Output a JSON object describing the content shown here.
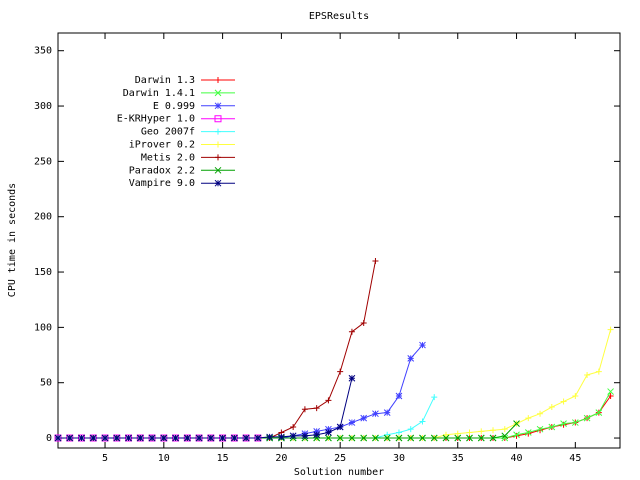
{
  "chart_data": {
    "type": "line",
    "title": "EPSResults",
    "x_label": "Solution number",
    "y_label": "CPU time in seconds",
    "x": [
      1,
      2,
      3,
      4,
      5,
      6,
      7,
      8,
      9,
      10,
      11,
      12,
      13,
      14,
      15,
      16,
      17,
      18,
      19,
      20,
      21,
      22,
      23,
      24,
      25,
      26,
      27,
      28,
      29,
      30,
      31,
      32,
      33,
      34,
      35,
      36,
      37,
      38,
      39,
      40,
      41,
      42,
      43,
      44,
      45,
      46,
      47,
      48
    ],
    "xlim": [
      1,
      48.8
    ],
    "xticks": [
      5,
      10,
      15,
      20,
      25,
      30,
      35,
      40,
      45
    ],
    "ylim": [
      -9,
      366
    ],
    "yticks": [
      0,
      50,
      100,
      150,
      200,
      250,
      300,
      350
    ],
    "grid": false,
    "legend": "upper left",
    "series": [
      {
        "name": "Darwin 1.3",
        "color": "#ff0000",
        "marker": "plus",
        "values": [
          0,
          0,
          0,
          0,
          0,
          0,
          0,
          0,
          0,
          0,
          0,
          0,
          0,
          0,
          0,
          0,
          0,
          0,
          0,
          0,
          0,
          0,
          0,
          0,
          0,
          0,
          0,
          0,
          0,
          0,
          0,
          0,
          0,
          0,
          0,
          0,
          0,
          0,
          0,
          2,
          4,
          7,
          10,
          12,
          14,
          18,
          23,
          38
        ]
      },
      {
        "name": "Darwin 1.4.1",
        "color": "#40ff40",
        "marker": "cross",
        "values": [
          0,
          0,
          0,
          0,
          0,
          0,
          0,
          0,
          0,
          0,
          0,
          0,
          0,
          0,
          0,
          0,
          0,
          0,
          0,
          0,
          0,
          0,
          0,
          0,
          0,
          0,
          0,
          0,
          0,
          0,
          0,
          0,
          0,
          0,
          0,
          0,
          0,
          0,
          0,
          3,
          5,
          8,
          10,
          13,
          14,
          18,
          23,
          42
        ]
      },
      {
        "name": "E 0.999",
        "color": "#4040ff",
        "marker": "star",
        "values": [
          0,
          0,
          0,
          0,
          0,
          0,
          0,
          0,
          0,
          0,
          0,
          0,
          0,
          0,
          0,
          0,
          0,
          0,
          0,
          0,
          2,
          4,
          6,
          8,
          10,
          14,
          18,
          22,
          23,
          38,
          72,
          84,
          null,
          null,
          null,
          null,
          null,
          null,
          null,
          null,
          null,
          null,
          null,
          null,
          null,
          null,
          null,
          null
        ]
      },
      {
        "name": "E-KRHyper 1.0",
        "color": "#ff00ff",
        "marker": "square",
        "values": [
          0,
          0,
          0,
          0,
          0,
          0,
          0,
          0,
          0,
          0,
          0,
          0,
          0,
          0,
          0,
          0,
          0,
          0,
          null,
          null,
          null,
          null,
          null,
          null,
          null,
          null,
          null,
          null,
          null,
          null,
          null,
          null,
          null,
          null,
          null,
          null,
          null,
          null,
          null,
          null,
          null,
          null,
          null,
          null,
          null,
          null,
          null,
          null
        ]
      },
      {
        "name": "Geo 2007f",
        "color": "#40ffff",
        "marker": "plus",
        "values": [
          0,
          0,
          0,
          0,
          0,
          0,
          0,
          0,
          0,
          0,
          0,
          0,
          0,
          0,
          0,
          0,
          0,
          0,
          0,
          0,
          0,
          0,
          0,
          0,
          0,
          0,
          0,
          0,
          3,
          5,
          8,
          15,
          37,
          null,
          null,
          null,
          null,
          null,
          null,
          null,
          null,
          null,
          null,
          null,
          null,
          null,
          null,
          null
        ]
      },
      {
        "name": "iProver 0.2",
        "color": "#ffff40",
        "marker": "plus",
        "values": [
          0,
          0,
          0,
          0,
          0,
          0,
          0,
          0,
          0,
          0,
          0,
          0,
          0,
          0,
          0,
          0,
          0,
          0,
          0,
          0,
          0,
          0,
          0,
          0,
          0,
          0,
          0,
          0,
          0,
          0,
          0,
          0,
          0,
          3,
          4,
          5,
          6,
          7,
          8,
          13,
          18,
          22,
          28,
          33,
          38,
          57,
          60,
          98
        ]
      },
      {
        "name": "Metis 2.0",
        "color": "#a00000",
        "marker": "plus",
        "values": [
          0,
          0,
          0,
          0,
          0,
          0,
          0,
          0,
          0,
          0,
          0,
          0,
          0,
          0,
          0,
          0,
          0,
          0,
          0,
          5,
          10,
          26,
          27,
          34,
          60,
          96,
          104,
          160,
          null,
          null,
          null,
          null,
          null,
          null,
          null,
          null,
          null,
          null,
          null,
          null,
          null,
          null,
          null,
          null,
          null,
          null,
          null,
          null
        ]
      },
      {
        "name": "Paradox 2.2",
        "color": "#00a000",
        "marker": "cross",
        "values": [
          0,
          0,
          0,
          0,
          0,
          0,
          0,
          0,
          0,
          0,
          0,
          0,
          0,
          0,
          0,
          0,
          0,
          0,
          0,
          0,
          0,
          0,
          0,
          0,
          0,
          0,
          0,
          0,
          0,
          0,
          0,
          0,
          0,
          0,
          0,
          0,
          0,
          0,
          2,
          13,
          null,
          null,
          null,
          null,
          null,
          null,
          null,
          null
        ]
      },
      {
        "name": "Vampire 9.0",
        "color": "#000080",
        "marker": "star",
        "values": [
          0,
          0,
          0,
          0,
          0,
          0,
          0,
          0,
          0,
          0,
          0,
          0,
          0,
          0,
          0,
          0,
          0,
          0,
          1,
          1,
          2,
          2,
          3,
          5,
          10,
          54,
          null,
          null,
          null,
          null,
          null,
          null,
          null,
          null,
          null,
          null,
          null,
          null,
          null,
          null,
          null,
          null,
          null,
          null,
          null,
          null,
          null,
          null
        ]
      }
    ]
  }
}
